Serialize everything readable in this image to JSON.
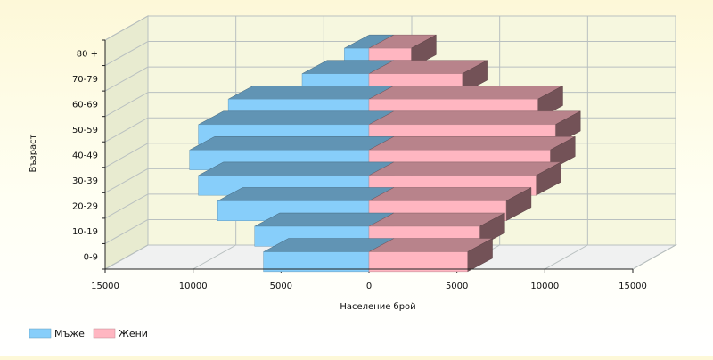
{
  "chart_data": {
    "type": "bar",
    "orientation": "horizontal",
    "layout": "population-pyramid",
    "style": "3d",
    "categories": [
      "0-9",
      "10-19",
      "20-29",
      "30-39",
      "40-49",
      "50-59",
      "60-69",
      "70-79",
      "80 +"
    ],
    "series": [
      {
        "name": "Мъже",
        "values": [
          6000,
          6500,
          8600,
          9700,
          10200,
          9700,
          8000,
          3800,
          1400
        ],
        "color": "#87cefa",
        "side": "left"
      },
      {
        "name": "Жени",
        "values": [
          5600,
          6300,
          7800,
          9500,
          10300,
          10600,
          9600,
          5300,
          2400
        ],
        "color": "#ffb6c1",
        "side": "right"
      }
    ],
    "xlabel": "Население брой",
    "ylabel": "Възраст",
    "xlim": [
      -15000,
      15000
    ],
    "x_ticks": [
      "15000",
      "10000",
      "5000",
      "0",
      "5000",
      "10000",
      "15000"
    ],
    "grid": true,
    "legend_position": "bottom-left"
  }
}
